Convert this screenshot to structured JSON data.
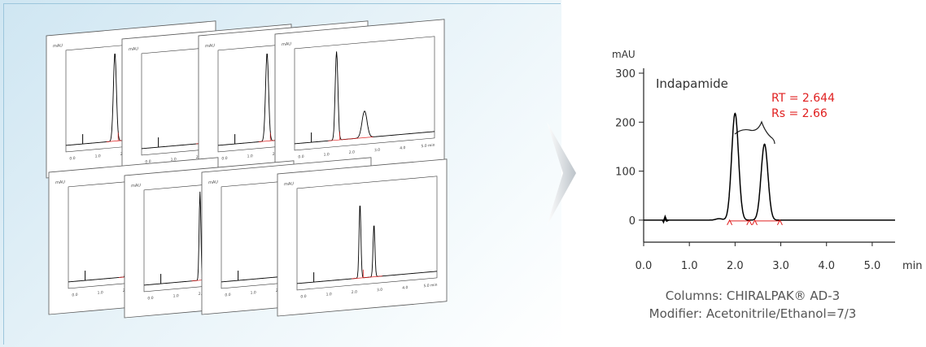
{
  "thumbnail_charts": {
    "count": 8,
    "description_rows": 2,
    "colors": {
      "trace": "#000000",
      "baseline_marker": "#e02020",
      "sheet_fill": "#ffffff",
      "sheet_border": "#555555"
    },
    "tick_labels_x": [
      "0.0",
      "1.0",
      "2.0",
      "3.0",
      "4.0",
      "5.0 min"
    ],
    "unit_y": "mAU"
  },
  "chart_data": {
    "type": "line",
    "xlabel": "min",
    "ylabel": "mAU",
    "xlim": [
      0,
      5.5
    ],
    "ylim": [
      -45,
      310
    ],
    "xticks": [
      "0.0",
      "1.0",
      "2.0",
      "3.0",
      "4.0",
      "5.0"
    ],
    "yticks": [
      "0",
      "100",
      "200",
      "300"
    ],
    "grid": false,
    "sample_label": "Indapamide",
    "peaks": [
      {
        "retention_time": 2.0,
        "height": 218
      },
      {
        "retention_time": 2.644,
        "height": 155
      }
    ],
    "annotation": {
      "rt_label": "RT = 2.644",
      "rs_label": "Rs = 2.66",
      "color": "#e02020"
    },
    "trace_color": "#000000",
    "marker_color": "#e02020",
    "baseline_markers": [
      1.88,
      2.31,
      2.43,
      2.98
    ]
  },
  "caption": {
    "column": "Columns: CHIRALPAK® AD-3",
    "modifier": "Modifier: Acetonitrile/Ethanol=7/3"
  }
}
